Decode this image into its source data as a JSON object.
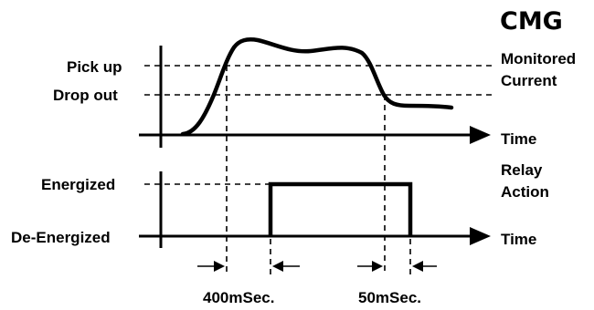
{
  "brand": "CMG",
  "current_graph": {
    "signal_label_line1": "Monitored",
    "signal_label_line2": "Current",
    "axis_label": "Time",
    "levels": {
      "pick_up": "Pick up",
      "drop_out": "Drop out"
    }
  },
  "relay_graph": {
    "signal_label_line1": "Relay",
    "signal_label_line2": "Action",
    "axis_label": "Time",
    "states": {
      "energized": "Energized",
      "de_energized": "De-Energized"
    }
  },
  "timing": {
    "pickup_delay": "400mSec.",
    "dropout_delay": "50mSec."
  }
}
